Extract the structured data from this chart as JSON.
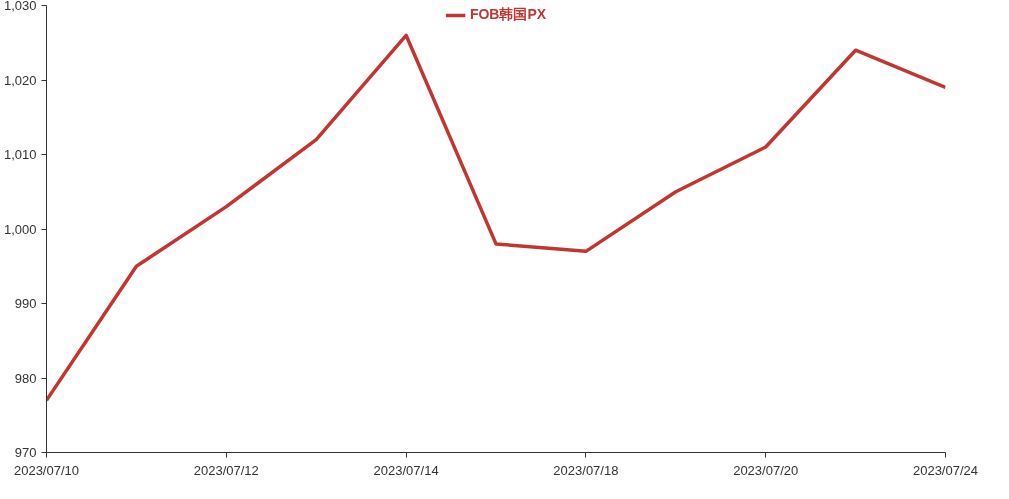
{
  "chart_data": {
    "type": "line",
    "categories": [
      "2023/07/10",
      null,
      "2023/07/12",
      null,
      "2023/07/14",
      null,
      "2023/07/18",
      null,
      "2023/07/20",
      null,
      "2023/07/24"
    ],
    "series": [
      {
        "name": "FOB韩国PX",
        "color": "#c23531",
        "values": [
          977,
          995,
          1003,
          1012,
          1026,
          998,
          997,
          1005,
          1011,
          1024,
          1019
        ]
      }
    ],
    "ylim": [
      970,
      1030
    ],
    "yticks": [
      970,
      980,
      990,
      {
        "value": 1000,
        "label": "1,000"
      },
      {
        "value": 1010,
        "label": "1,010"
      },
      {
        "value": 1020,
        "label": "1,020"
      },
      {
        "value": 1030,
        "label": "1,030"
      }
    ],
    "grid": false,
    "legend": "top"
  }
}
